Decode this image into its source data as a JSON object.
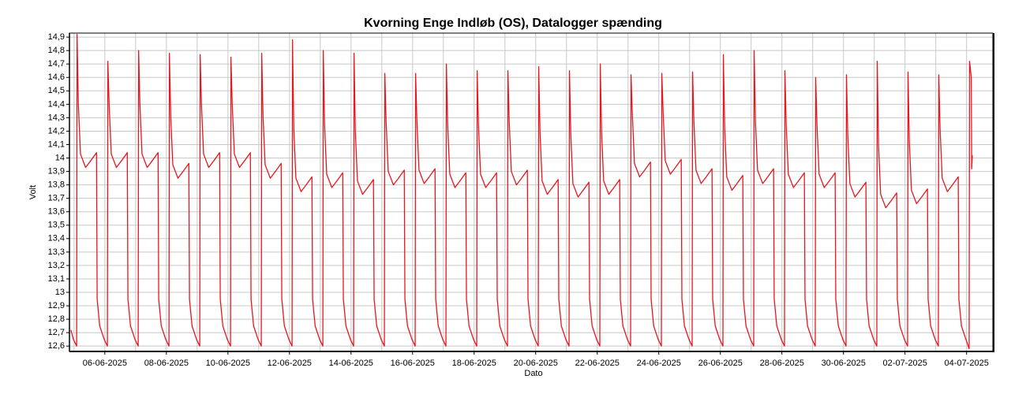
{
  "chart_data": {
    "type": "line",
    "title": "Kvorning Enge Indløb (OS), Datalogger spænding",
    "ylabel": "Volt",
    "xlabel": "Dato",
    "color": "#e8161e",
    "grid": true,
    "ylim": [
      12.56,
      14.93
    ],
    "yticks": [
      {
        "value": 12.6,
        "label": "12,6"
      },
      {
        "value": 12.7,
        "label": "12,7"
      },
      {
        "value": 12.8,
        "label": "12,8"
      },
      {
        "value": 12.9,
        "label": "12,9"
      },
      13,
      {
        "value": 13.1,
        "label": "13,1"
      },
      {
        "value": 13.2,
        "label": "13,2"
      },
      {
        "value": 13.3,
        "label": "13,3"
      },
      {
        "value": 13.4,
        "label": "13,4"
      },
      {
        "value": 13.5,
        "label": "13,5"
      },
      {
        "value": 13.6,
        "label": "13,6"
      },
      {
        "value": 13.7,
        "label": "13,7"
      },
      {
        "value": 13.8,
        "label": "13,8"
      },
      {
        "value": 13.9,
        "label": "13,9"
      },
      14,
      {
        "value": 14.1,
        "label": "14,1"
      },
      {
        "value": 14.2,
        "label": "14,2"
      },
      {
        "value": 14.3,
        "label": "14,3"
      },
      {
        "value": 14.4,
        "label": "14,4"
      },
      {
        "value": 14.5,
        "label": "14,5"
      },
      {
        "value": 14.6,
        "label": "14,6"
      },
      {
        "value": 14.7,
        "label": "14,7"
      },
      {
        "value": 14.8,
        "label": "14,8"
      },
      {
        "value": 14.9,
        "label": "14,9"
      }
    ],
    "xlim": [
      "2025-06-04T20:24",
      "2025-07-04T20:30"
    ],
    "xticks": [
      {
        "value": "2025-06-06T00:00",
        "label": "06-06-2025"
      },
      {
        "value": "2025-06-08T00:00",
        "label": "08-06-2025"
      },
      {
        "value": "2025-06-10T00:00",
        "label": "10-06-2025"
      },
      {
        "value": "2025-06-12T00:00",
        "label": "12-06-2025"
      },
      {
        "value": "2025-06-14T00:00",
        "label": "14-06-2025"
      },
      {
        "value": "2025-06-16T00:00",
        "label": "16-06-2025"
      },
      {
        "value": "2025-06-18T00:00",
        "label": "18-06-2025"
      },
      {
        "value": "2025-06-20T00:00",
        "label": "20-06-2025"
      },
      {
        "value": "2025-06-22T00:00",
        "label": "22-06-2025"
      },
      {
        "value": "2025-06-24T00:00",
        "label": "24-06-2025"
      },
      {
        "value": "2025-06-26T00:00",
        "label": "26-06-2025"
      },
      {
        "value": "2025-06-28T00:00",
        "label": "28-06-2025"
      },
      {
        "value": "2025-06-30T00:00",
        "label": "30-06-2025"
      },
      {
        "value": "2025-07-02T00:00",
        "label": "02-07-2025"
      },
      {
        "value": "2025-07-04T00:00",
        "label": "04-07-2025"
      }
    ],
    "x": [
      "2025-06-04T21:30",
      "2025-06-04T23:30",
      "2025-06-05T02:00",
      "2025-06-05T02:20",
      "2025-06-05T03:20",
      "2025-06-05T05:00",
      "2025-06-05T09:00",
      "2025-06-05T13:00",
      "2025-06-05T17:30",
      "2025-06-05T18:00",
      "2025-06-05T20:00",
      "2025-06-05T23:30",
      "2025-06-06T02:00",
      "2025-06-06T02:20",
      "2025-06-06T03:20",
      "2025-06-06T05:00",
      "2025-06-06T09:00",
      "2025-06-06T13:00",
      "2025-06-06T17:30",
      "2025-06-06T18:00",
      "2025-06-06T20:00",
      "2025-06-06T23:30",
      "2025-06-07T02:00",
      "2025-06-07T02:20",
      "2025-06-07T03:20",
      "2025-06-07T05:00",
      "2025-06-07T09:00",
      "2025-06-07T13:00",
      "2025-06-07T17:30",
      "2025-06-07T18:00",
      "2025-06-07T20:00",
      "2025-06-07T23:30",
      "2025-06-08T02:00",
      "2025-06-08T02:20",
      "2025-06-08T03:20",
      "2025-06-08T05:00",
      "2025-06-08T09:00",
      "2025-06-08T13:00",
      "2025-06-08T17:30",
      "2025-06-08T18:00",
      "2025-06-08T20:00",
      "2025-06-08T23:30",
      "2025-06-09T02:00",
      "2025-06-09T02:20",
      "2025-06-09T03:20",
      "2025-06-09T05:00",
      "2025-06-09T09:00",
      "2025-06-09T13:00",
      "2025-06-09T17:30",
      "2025-06-09T18:00",
      "2025-06-09T20:00",
      "2025-06-09T23:30",
      "2025-06-10T02:00",
      "2025-06-10T02:20",
      "2025-06-10T03:20",
      "2025-06-10T05:00",
      "2025-06-10T09:00",
      "2025-06-10T13:00",
      "2025-06-10T17:30",
      "2025-06-10T18:00",
      "2025-06-10T20:00",
      "2025-06-10T23:30",
      "2025-06-11T02:00",
      "2025-06-11T02:20",
      "2025-06-11T03:20",
      "2025-06-11T05:00",
      "2025-06-11T09:00",
      "2025-06-11T13:00",
      "2025-06-11T17:30",
      "2025-06-11T18:00",
      "2025-06-11T20:00",
      "2025-06-11T23:30",
      "2025-06-12T02:00",
      "2025-06-12T02:20",
      "2025-06-12T03:20",
      "2025-06-12T05:00",
      "2025-06-12T09:00",
      "2025-06-12T13:00",
      "2025-06-12T17:30",
      "2025-06-12T18:00",
      "2025-06-12T20:00",
      "2025-06-12T23:30",
      "2025-06-13T02:00",
      "2025-06-13T02:20",
      "2025-06-13T03:20",
      "2025-06-13T05:00",
      "2025-06-13T09:00",
      "2025-06-13T13:00",
      "2025-06-13T17:30",
      "2025-06-13T18:00",
      "2025-06-13T20:00",
      "2025-06-13T23:30",
      "2025-06-14T02:00",
      "2025-06-14T02:20",
      "2025-06-14T03:20",
      "2025-06-14T05:00",
      "2025-06-14T09:00",
      "2025-06-14T13:00",
      "2025-06-14T17:30",
      "2025-06-14T18:00",
      "2025-06-14T20:00",
      "2025-06-14T23:30",
      "2025-06-15T02:00",
      "2025-06-15T02:20",
      "2025-06-15T03:20",
      "2025-06-15T05:00",
      "2025-06-15T09:00",
      "2025-06-15T13:00",
      "2025-06-15T17:30",
      "2025-06-15T18:00",
      "2025-06-15T20:00",
      "2025-06-15T23:30",
      "2025-06-16T02:00",
      "2025-06-16T02:20",
      "2025-06-16T03:20",
      "2025-06-16T05:00",
      "2025-06-16T09:00",
      "2025-06-16T13:00",
      "2025-06-16T17:30",
      "2025-06-16T18:00",
      "2025-06-16T20:00",
      "2025-06-16T23:30",
      "2025-06-17T02:00",
      "2025-06-17T02:20",
      "2025-06-17T03:20",
      "2025-06-17T05:00",
      "2025-06-17T09:00",
      "2025-06-17T13:00",
      "2025-06-17T17:30",
      "2025-06-17T18:00",
      "2025-06-17T20:00",
      "2025-06-17T23:30",
      "2025-06-18T02:00",
      "2025-06-18T02:20",
      "2025-06-18T03:20",
      "2025-06-18T05:00",
      "2025-06-18T09:00",
      "2025-06-18T13:00",
      "2025-06-18T17:30",
      "2025-06-18T18:00",
      "2025-06-18T20:00",
      "2025-06-18T23:30",
      "2025-06-19T02:00",
      "2025-06-19T02:20",
      "2025-06-19T03:20",
      "2025-06-19T05:00",
      "2025-06-19T09:00",
      "2025-06-19T13:00",
      "2025-06-19T17:30",
      "2025-06-19T18:00",
      "2025-06-19T20:00",
      "2025-06-19T23:30",
      "2025-06-20T02:00",
      "2025-06-20T02:20",
      "2025-06-20T03:20",
      "2025-06-20T05:00",
      "2025-06-20T09:00",
      "2025-06-20T13:00",
      "2025-06-20T17:30",
      "2025-06-20T18:00",
      "2025-06-20T20:00",
      "2025-06-20T23:30",
      "2025-06-21T02:00",
      "2025-06-21T02:20",
      "2025-06-21T03:20",
      "2025-06-21T05:00",
      "2025-06-21T09:00",
      "2025-06-21T13:00",
      "2025-06-21T17:30",
      "2025-06-21T18:00",
      "2025-06-21T20:00",
      "2025-06-21T23:30",
      "2025-06-22T02:00",
      "2025-06-22T02:20",
      "2025-06-22T03:20",
      "2025-06-22T05:00",
      "2025-06-22T09:00",
      "2025-06-22T13:00",
      "2025-06-22T17:30",
      "2025-06-22T18:00",
      "2025-06-22T20:00",
      "2025-06-22T23:30",
      "2025-06-23T02:00",
      "2025-06-23T02:20",
      "2025-06-23T03:20",
      "2025-06-23T05:00",
      "2025-06-23T09:00",
      "2025-06-23T13:00",
      "2025-06-23T17:30",
      "2025-06-23T18:00",
      "2025-06-23T20:00",
      "2025-06-23T23:30",
      "2025-06-24T02:00",
      "2025-06-24T02:20",
      "2025-06-24T03:20",
      "2025-06-24T05:00",
      "2025-06-24T09:00",
      "2025-06-24T13:00",
      "2025-06-24T17:30",
      "2025-06-24T18:00",
      "2025-06-24T20:00",
      "2025-06-24T23:30",
      "2025-06-25T02:00",
      "2025-06-25T02:20",
      "2025-06-25T03:20",
      "2025-06-25T05:00",
      "2025-06-25T09:00",
      "2025-06-25T13:00",
      "2025-06-25T17:30",
      "2025-06-25T18:00",
      "2025-06-25T20:00",
      "2025-06-25T23:30",
      "2025-06-26T02:00",
      "2025-06-26T02:20",
      "2025-06-26T03:20",
      "2025-06-26T05:00",
      "2025-06-26T09:00",
      "2025-06-26T13:00",
      "2025-06-26T17:30",
      "2025-06-26T18:00",
      "2025-06-26T20:00",
      "2025-06-26T23:30",
      "2025-06-27T02:00",
      "2025-06-27T02:20",
      "2025-06-27T03:20",
      "2025-06-27T05:00",
      "2025-06-27T09:00",
      "2025-06-27T13:00",
      "2025-06-27T17:30",
      "2025-06-27T18:00",
      "2025-06-27T20:00",
      "2025-06-27T23:30",
      "2025-06-28T02:00",
      "2025-06-28T02:20",
      "2025-06-28T03:20",
      "2025-06-28T05:00",
      "2025-06-28T09:00",
      "2025-06-28T13:00",
      "2025-06-28T17:30",
      "2025-06-28T18:00",
      "2025-06-28T20:00",
      "2025-06-28T23:30",
      "2025-06-29T02:00",
      "2025-06-29T02:20",
      "2025-06-29T03:20",
      "2025-06-29T05:00",
      "2025-06-29T09:00",
      "2025-06-29T13:00",
      "2025-06-29T17:30",
      "2025-06-29T18:00",
      "2025-06-29T20:00",
      "2025-06-29T23:30",
      "2025-06-30T02:00",
      "2025-06-30T02:20",
      "2025-06-30T03:20",
      "2025-06-30T05:00",
      "2025-06-30T09:00",
      "2025-06-30T13:00",
      "2025-06-30T17:30",
      "2025-06-30T18:00",
      "2025-06-30T20:00",
      "2025-06-30T23:30",
      "2025-07-01T02:00",
      "2025-07-01T02:20",
      "2025-07-01T03:20",
      "2025-07-01T05:00",
      "2025-07-01T09:00",
      "2025-07-01T13:00",
      "2025-07-01T17:30",
      "2025-07-01T18:00",
      "2025-07-01T20:00",
      "2025-07-01T23:30",
      "2025-07-02T02:00",
      "2025-07-02T02:20",
      "2025-07-02T03:20",
      "2025-07-02T05:00",
      "2025-07-02T09:00",
      "2025-07-02T13:00",
      "2025-07-02T17:30",
      "2025-07-02T18:00",
      "2025-07-02T20:00",
      "2025-07-02T23:30",
      "2025-07-03T02:00",
      "2025-07-03T02:20",
      "2025-07-03T03:20",
      "2025-07-03T05:00",
      "2025-07-03T09:00",
      "2025-07-03T13:00",
      "2025-07-03T17:30",
      "2025-07-03T18:00",
      "2025-07-03T20:00",
      "2025-07-03T23:30",
      "2025-07-04T02:00",
      "2025-07-04T02:20",
      "2025-07-04T03:40",
      "2025-07-04T04:00",
      "2025-07-04T04:30"
    ],
    "values": [
      12.72,
      12.65,
      12.6,
      14.92,
      14.4,
      14.03,
      13.93,
      13.98,
      14.04,
      12.95,
      12.75,
      12.65,
      12.6,
      14.72,
      14.4,
      14.03,
      13.93,
      13.98,
      14.04,
      12.95,
      12.75,
      12.65,
      12.6,
      14.8,
      14.4,
      14.03,
      13.93,
      13.98,
      14.04,
      12.95,
      12.75,
      12.65,
      12.6,
      14.78,
      14.32,
      13.95,
      13.85,
      13.9,
      13.96,
      12.95,
      12.75,
      12.65,
      12.6,
      14.77,
      14.4,
      14.03,
      13.93,
      13.98,
      14.04,
      12.95,
      12.75,
      12.65,
      12.6,
      14.75,
      14.4,
      14.03,
      13.93,
      13.98,
      14.04,
      12.95,
      12.75,
      12.65,
      12.6,
      14.78,
      14.32,
      13.95,
      13.85,
      13.9,
      13.96,
      12.95,
      12.75,
      12.65,
      12.6,
      14.88,
      14.22,
      13.85,
      13.75,
      13.8,
      13.86,
      12.95,
      12.75,
      12.65,
      12.6,
      14.8,
      14.25,
      13.88,
      13.78,
      13.83,
      13.89,
      12.95,
      12.75,
      12.65,
      12.6,
      14.78,
      14.2,
      13.83,
      13.73,
      13.78,
      13.84,
      12.95,
      12.75,
      12.65,
      12.6,
      14.63,
      14.27,
      13.9,
      13.8,
      13.85,
      13.91,
      12.95,
      12.75,
      12.65,
      12.6,
      14.63,
      14.28,
      13.91,
      13.81,
      13.86,
      13.92,
      12.95,
      12.75,
      12.65,
      12.6,
      14.7,
      14.25,
      13.88,
      13.78,
      13.83,
      13.89,
      12.95,
      12.75,
      12.65,
      12.6,
      14.65,
      14.25,
      13.88,
      13.78,
      13.83,
      13.89,
      12.95,
      12.75,
      12.65,
      12.6,
      14.65,
      14.27,
      13.9,
      13.8,
      13.85,
      13.91,
      12.95,
      12.75,
      12.65,
      12.6,
      14.68,
      14.2,
      13.83,
      13.73,
      13.78,
      13.84,
      12.95,
      12.75,
      12.65,
      12.6,
      14.65,
      14.18,
      13.81,
      13.71,
      13.76,
      13.82,
      12.95,
      12.75,
      12.65,
      12.6,
      14.7,
      14.2,
      13.83,
      13.73,
      13.78,
      13.84,
      12.95,
      12.75,
      12.65,
      12.6,
      14.62,
      14.33,
      13.96,
      13.86,
      13.91,
      13.97,
      12.95,
      12.75,
      12.65,
      12.6,
      14.63,
      14.35,
      13.98,
      13.88,
      13.93,
      13.99,
      12.95,
      12.75,
      12.65,
      12.6,
      14.64,
      14.28,
      13.91,
      13.81,
      13.86,
      13.92,
      12.95,
      12.75,
      12.65,
      12.6,
      14.77,
      14.23,
      13.86,
      13.76,
      13.81,
      13.87,
      12.95,
      12.75,
      12.65,
      12.6,
      14.8,
      14.28,
      13.91,
      13.81,
      13.86,
      13.92,
      12.95,
      12.75,
      12.65,
      12.6,
      14.65,
      14.25,
      13.88,
      13.78,
      13.83,
      13.89,
      12.95,
      12.75,
      12.65,
      12.6,
      14.6,
      14.25,
      13.88,
      13.78,
      13.83,
      13.89,
      12.95,
      12.75,
      12.65,
      12.6,
      14.62,
      14.18,
      13.81,
      13.71,
      13.76,
      13.82,
      12.95,
      12.75,
      12.65,
      12.6,
      14.72,
      14.1,
      13.73,
      13.63,
      13.68,
      13.74,
      12.95,
      12.75,
      12.65,
      12.6,
      14.64,
      14.13,
      13.76,
      13.66,
      13.71,
      13.77,
      12.95,
      12.75,
      12.65,
      12.6,
      14.62,
      14.22,
      13.85,
      13.75,
      13.8,
      13.86,
      12.95,
      12.75,
      12.65,
      12.58,
      14.72,
      14.6,
      13.92,
      14.02
    ]
  }
}
